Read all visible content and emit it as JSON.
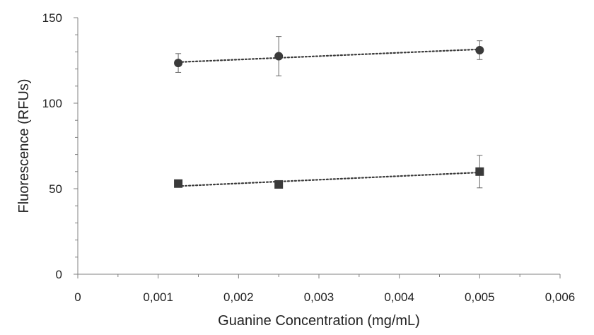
{
  "chart_data": {
    "type": "scatter",
    "title": "",
    "xlabel": "Guanine Concentration (mg/mL)",
    "ylabel": "Fluorescence (RFUs)",
    "xlim": [
      0,
      0.006
    ],
    "ylim": [
      0,
      150
    ],
    "x_ticks": [
      0,
      0.001,
      0.002,
      0.003,
      0.004,
      0.005,
      0.006
    ],
    "x_tick_labels": [
      "0",
      "0,001",
      "0,002",
      "0,003",
      "0,004",
      "0,005",
      "0,006"
    ],
    "y_ticks": [
      0,
      50,
      100,
      150
    ],
    "y_tick_labels": [
      "0",
      "50",
      "100",
      "150"
    ],
    "grid": false,
    "legend": false,
    "series": [
      {
        "name": "circles",
        "marker": "circle",
        "color": "#3a3a3a",
        "x": [
          0.00125,
          0.0025,
          0.005
        ],
        "y": [
          123.5,
          127.5,
          131
        ],
        "error": [
          5.5,
          11.5,
          5.5
        ],
        "trendline": {
          "style": "dotted",
          "from": [
            0.00125,
            124
          ],
          "to": [
            0.005,
            131.5
          ]
        }
      },
      {
        "name": "squares",
        "marker": "square",
        "color": "#3a3a3a",
        "x": [
          0.00125,
          0.0025,
          0.005
        ],
        "y": [
          53,
          52.5,
          60
        ],
        "error": [
          0,
          0,
          9.5
        ],
        "trendline": {
          "style": "dotted",
          "from": [
            0.00125,
            51.5
          ],
          "to": [
            0.005,
            59.5
          ]
        }
      }
    ]
  }
}
